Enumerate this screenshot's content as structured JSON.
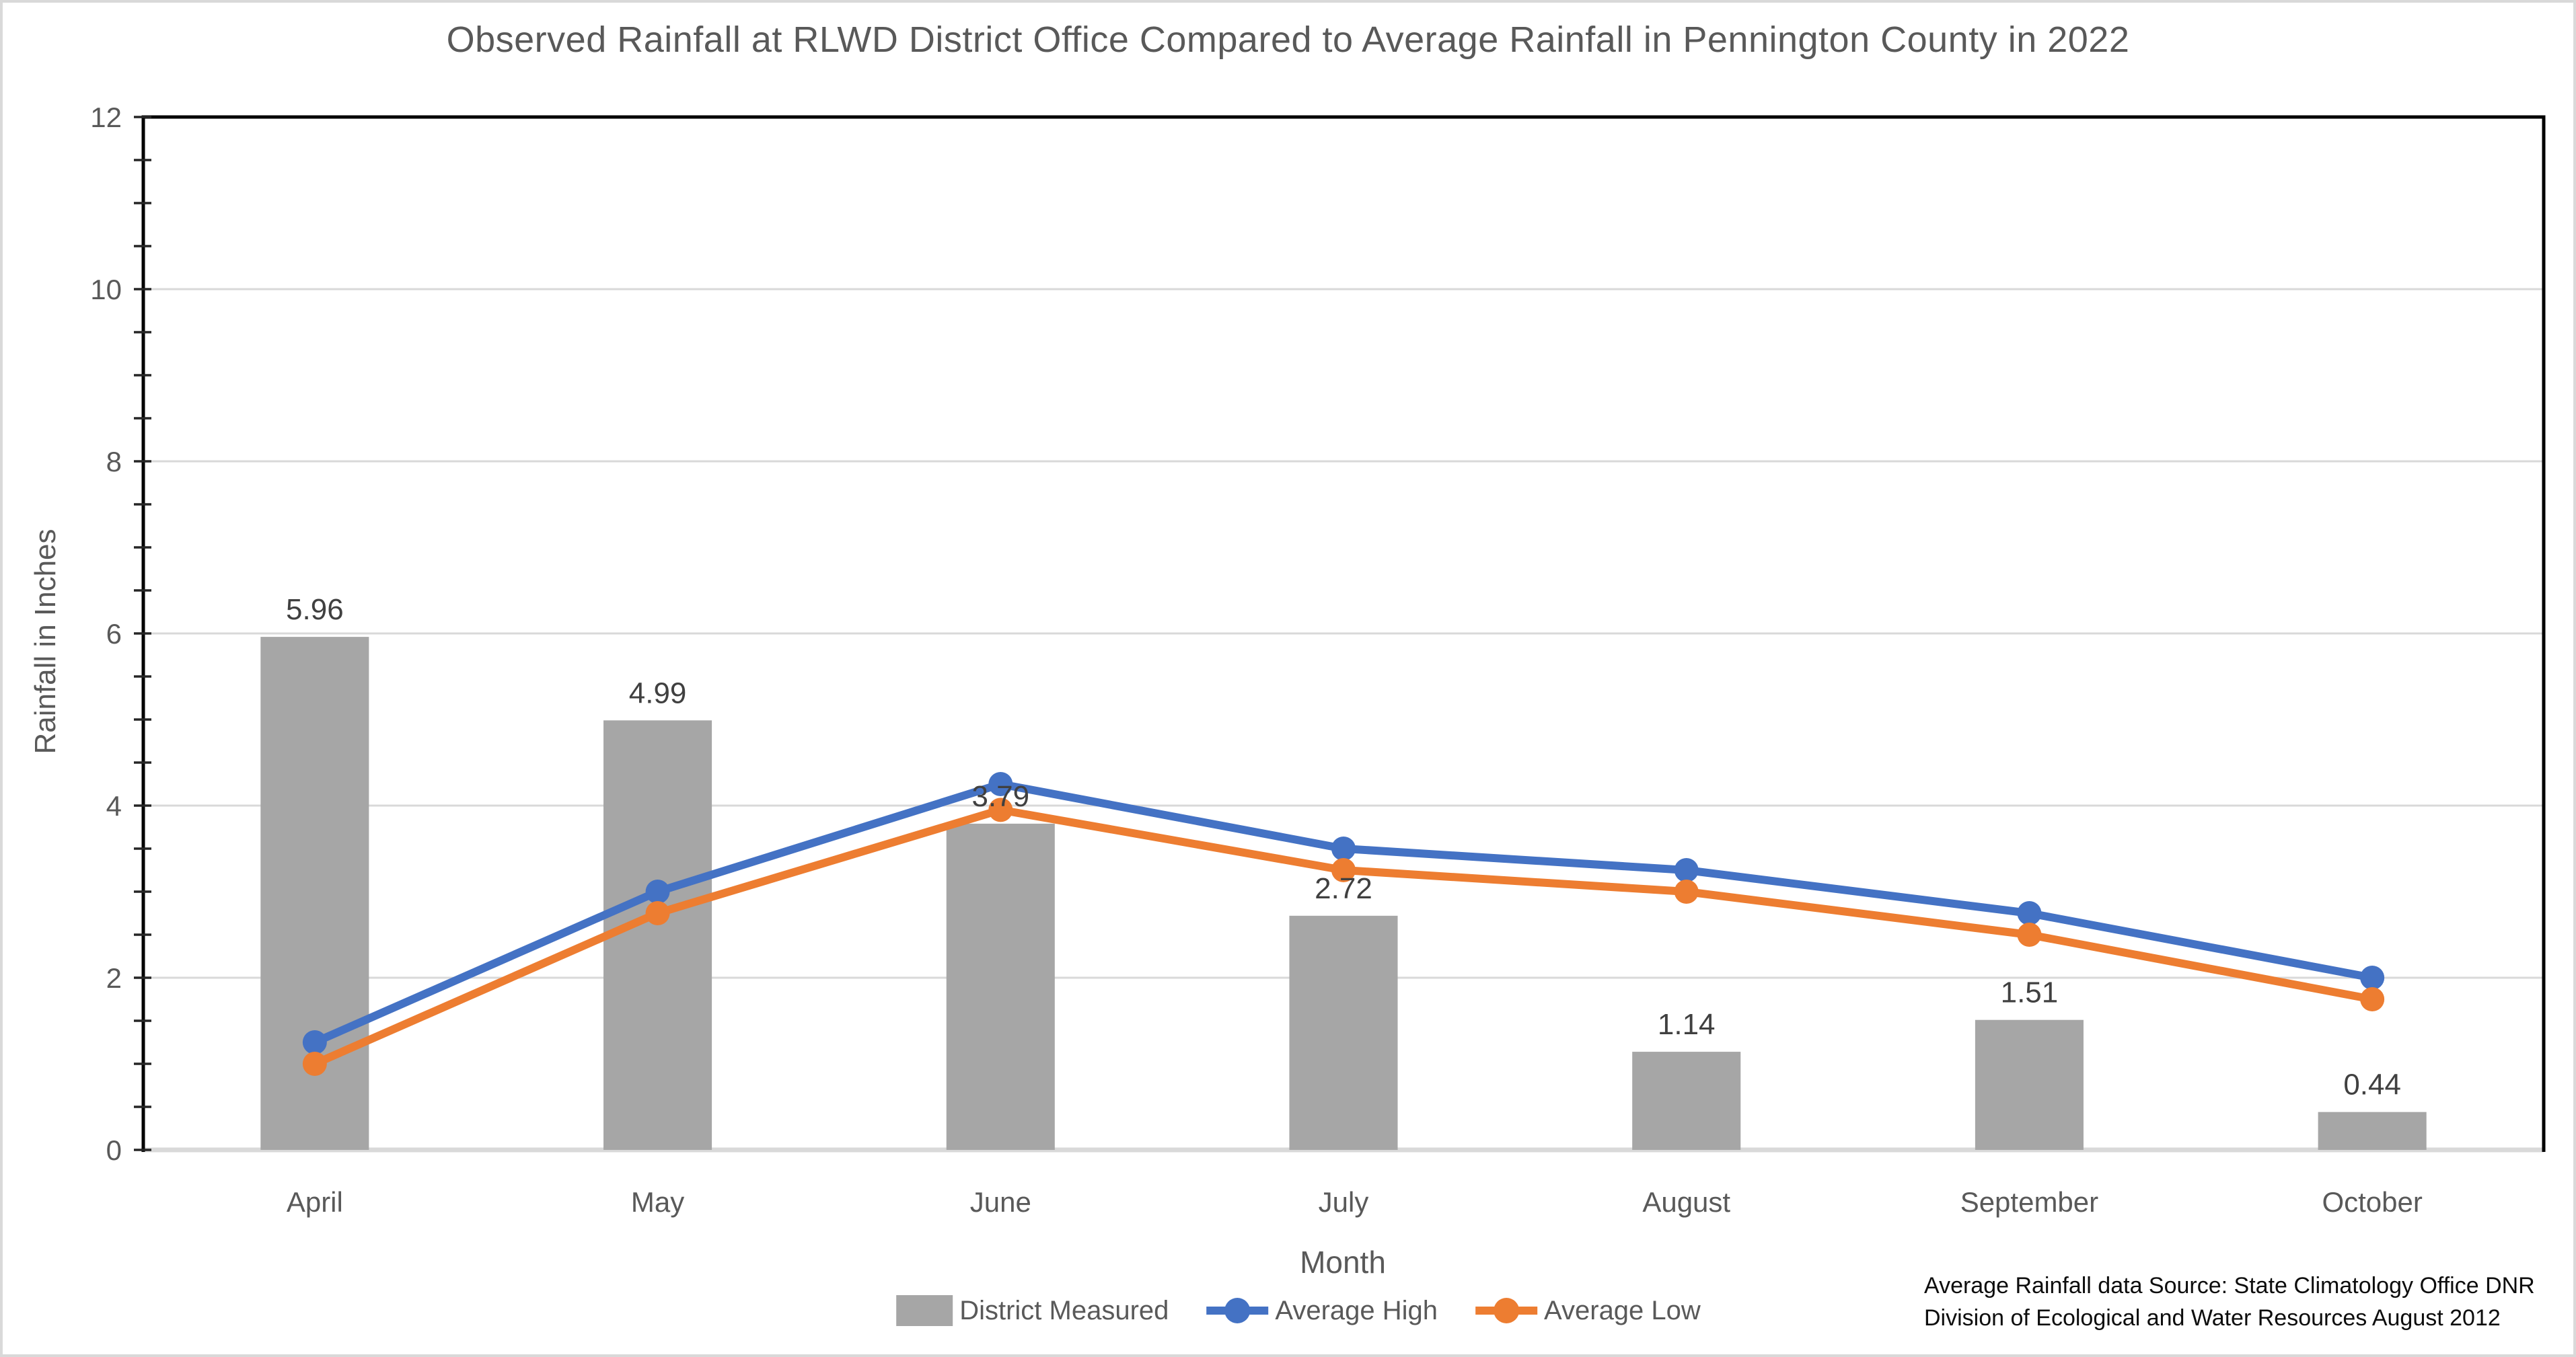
{
  "chart_data": {
    "type": "combo-bar-line",
    "title": "Observed Rainfall at RLWD District Office Compared to Average Rainfall in Pennington County in 2022",
    "xlabel": "Month",
    "ylabel": "Rainfall in Inches",
    "categories": [
      "April",
      "May",
      "June",
      "July",
      "August",
      "September",
      "October"
    ],
    "ylim": [
      0,
      12
    ],
    "y_tick_step": 2,
    "y_minor_tick_step": 0.5,
    "grid": true,
    "legend_position": "bottom",
    "series": [
      {
        "name": "District Measured",
        "type": "bar",
        "color": "#a6a6a6",
        "data_labels": true,
        "values": [
          5.96,
          4.99,
          3.79,
          2.72,
          1.14,
          1.51,
          0.44
        ]
      },
      {
        "name": "Average High",
        "type": "line",
        "color": "#4472c4",
        "data_labels": false,
        "values": [
          1.25,
          3.0,
          4.25,
          3.5,
          3.25,
          2.75,
          2.0
        ]
      },
      {
        "name": "Average Low",
        "type": "line",
        "color": "#ed7d31",
        "data_labels": false,
        "values": [
          1.0,
          2.75,
          3.95,
          3.25,
          3.0,
          2.5,
          1.75
        ]
      }
    ]
  },
  "source_note": {
    "line1": "Average Rainfall data Source: State Climatology Office DNR",
    "line2": "Division of Ecological and Water Resources August 2012"
  },
  "colors": {
    "background": "#ffffff",
    "outer_border": "#d9d9d9",
    "plot_border": "#000000",
    "gridline": "#d9d9d9",
    "bottom_axis": "#d9d9d9",
    "tick_mark": "#262626",
    "tick_label": "#595959",
    "data_label": "#404040",
    "title_text": "#595959",
    "source_text": "#0d0d0d"
  }
}
